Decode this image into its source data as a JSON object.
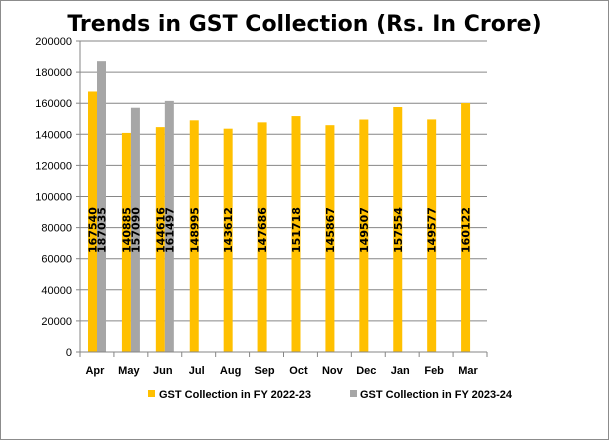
{
  "chart_data": {
    "type": "bar",
    "title": "Trends in GST Collection (Rs. In Crore)",
    "categories": [
      "Apr",
      "May",
      "Jun",
      "Jul",
      "Aug",
      "Sep",
      "Oct",
      "Nov",
      "Dec",
      "Jan",
      "Feb",
      "Mar"
    ],
    "series": [
      {
        "name": "GST Collection in FY 2022-23",
        "color": "#FFC000",
        "values": [
          167540,
          140885,
          144616,
          148995,
          143612,
          147686,
          151718,
          145867,
          149507,
          157554,
          149577,
          160122
        ]
      },
      {
        "name": "GST Collection in FY 2023-24",
        "color": "#A6A6A6",
        "values": [
          187035,
          157090,
          161497,
          null,
          null,
          null,
          null,
          null,
          null,
          null,
          null,
          null
        ]
      }
    ],
    "yticks": [
      "0",
      "20000",
      "40000",
      "60000",
      "80000",
      "100000",
      "120000",
      "140000",
      "160000",
      "180000",
      "200000"
    ],
    "ylim": [
      0,
      200000
    ],
    "grid": true,
    "legend": "bottom"
  }
}
